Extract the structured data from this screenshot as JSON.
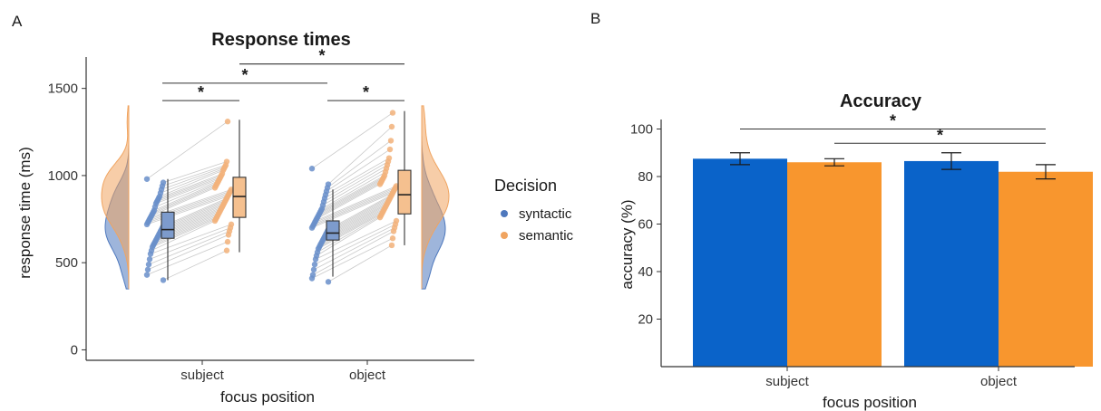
{
  "panels": {
    "a": "A",
    "b": "B"
  },
  "colors": {
    "syntactic_point": "#6a8fca",
    "semantic_point": "#f2b27a",
    "syntactic_box": "#7d9bcc",
    "semantic_box": "#f5c08f",
    "bar_blue": "#0a63c9",
    "bar_orange": "#f8962e",
    "pair_line": "#c9c9c9"
  },
  "chart_data": [
    {
      "type": "box",
      "title": "Response times",
      "xlabel": "focus position",
      "ylabel": "response time (ms)",
      "categories": [
        "subject",
        "object"
      ],
      "ylim": [
        -60,
        1680
      ],
      "yticks": [
        0,
        500,
        1000,
        1500
      ],
      "legend": {
        "title": "Decision",
        "placement": "right",
        "entries": [
          "syntactic",
          "semantic"
        ]
      },
      "series": [
        {
          "name": "syntactic",
          "boxes": [
            {
              "category": "subject",
              "min": 400,
              "q1": 640,
              "median": 690,
              "q3": 790,
              "max": 980
            },
            {
              "category": "object",
              "min": 420,
              "q1": 630,
              "median": 670,
              "q3": 740,
              "max": 920
            }
          ],
          "points": {
            "subject": [
              980,
              960,
              940,
              920,
              900,
              880,
              870,
              860,
              850,
              840,
              820,
              800,
              790,
              780,
              770,
              760,
              750,
              740,
              730,
              720,
              710,
              700,
              690,
              680,
              670,
              660,
              650,
              640,
              630,
              620,
              610,
              600,
              590,
              570,
              550,
              520,
              490,
              460,
              430,
              400
            ],
            "object": [
              1040,
              950,
              930,
              910,
              890,
              870,
              850,
              830,
              810,
              800,
              790,
              780,
              770,
              760,
              750,
              740,
              730,
              720,
              710,
              700,
              690,
              680,
              670,
              660,
              650,
              640,
              630,
              620,
              610,
              600,
              590,
              580,
              560,
              540,
              520,
              490,
              460,
              430,
              410,
              390
            ]
          }
        },
        {
          "name": "semantic",
          "boxes": [
            {
              "category": "subject",
              "min": 560,
              "q1": 760,
              "median": 880,
              "q3": 990,
              "max": 1320
            },
            {
              "category": "object",
              "min": 600,
              "q1": 780,
              "median": 890,
              "q3": 1030,
              "max": 1370
            }
          ],
          "points": {
            "subject": [
              1310,
              1080,
              1060,
              1050,
              1040,
              1030,
              1010,
              1000,
              990,
              980,
              970,
              960,
              950,
              940,
              930,
              920,
              910,
              900,
              890,
              880,
              870,
              860,
              850,
              840,
              830,
              820,
              810,
              800,
              790,
              780,
              770,
              760,
              750,
              740,
              720,
              700,
              680,
              660,
              620,
              570
            ],
            "object": [
              1360,
              1280,
              1200,
              1150,
              1100,
              1080,
              1060,
              1040,
              1020,
              1000,
              990,
              980,
              970,
              960,
              950,
              940,
              930,
              920,
              910,
              900,
              890,
              880,
              870,
              860,
              850,
              840,
              830,
              820,
              810,
              800,
              790,
              780,
              770,
              760,
              740,
              720,
              700,
              680,
              640,
              600
            ]
          }
        }
      ],
      "significance": [
        {
          "from": "subject-syntactic",
          "to": "subject-semantic",
          "y": 1430,
          "label": "*"
        },
        {
          "from": "subject-syntactic",
          "to": "object-syntactic",
          "y": 1530,
          "label": "*"
        },
        {
          "from": "object-syntactic",
          "to": "object-semantic",
          "y": 1430,
          "label": "*"
        },
        {
          "from": "subject-semantic",
          "to": "object-semantic",
          "y": 1640,
          "label": "*"
        }
      ]
    },
    {
      "type": "bar",
      "title": "Accuracy",
      "xlabel": "focus position",
      "ylabel": "accuracy (%)",
      "categories": [
        "subject",
        "object"
      ],
      "ylim": [
        0,
        104
      ],
      "yticks": [
        20,
        40,
        60,
        80,
        100
      ],
      "series": [
        {
          "name": "syntactic",
          "values": [
            87.5,
            86.5
          ],
          "errors": [
            2.5,
            3.5
          ]
        },
        {
          "name": "semantic",
          "values": [
            86,
            82
          ],
          "errors": [
            1.5,
            3
          ]
        }
      ],
      "significance": [
        {
          "from": "subject-syntactic",
          "to": "object-semantic",
          "y": 100,
          "label": "*"
        },
        {
          "from": "subject-semantic",
          "to": "object-semantic",
          "y": 94,
          "label": "*"
        }
      ]
    }
  ]
}
